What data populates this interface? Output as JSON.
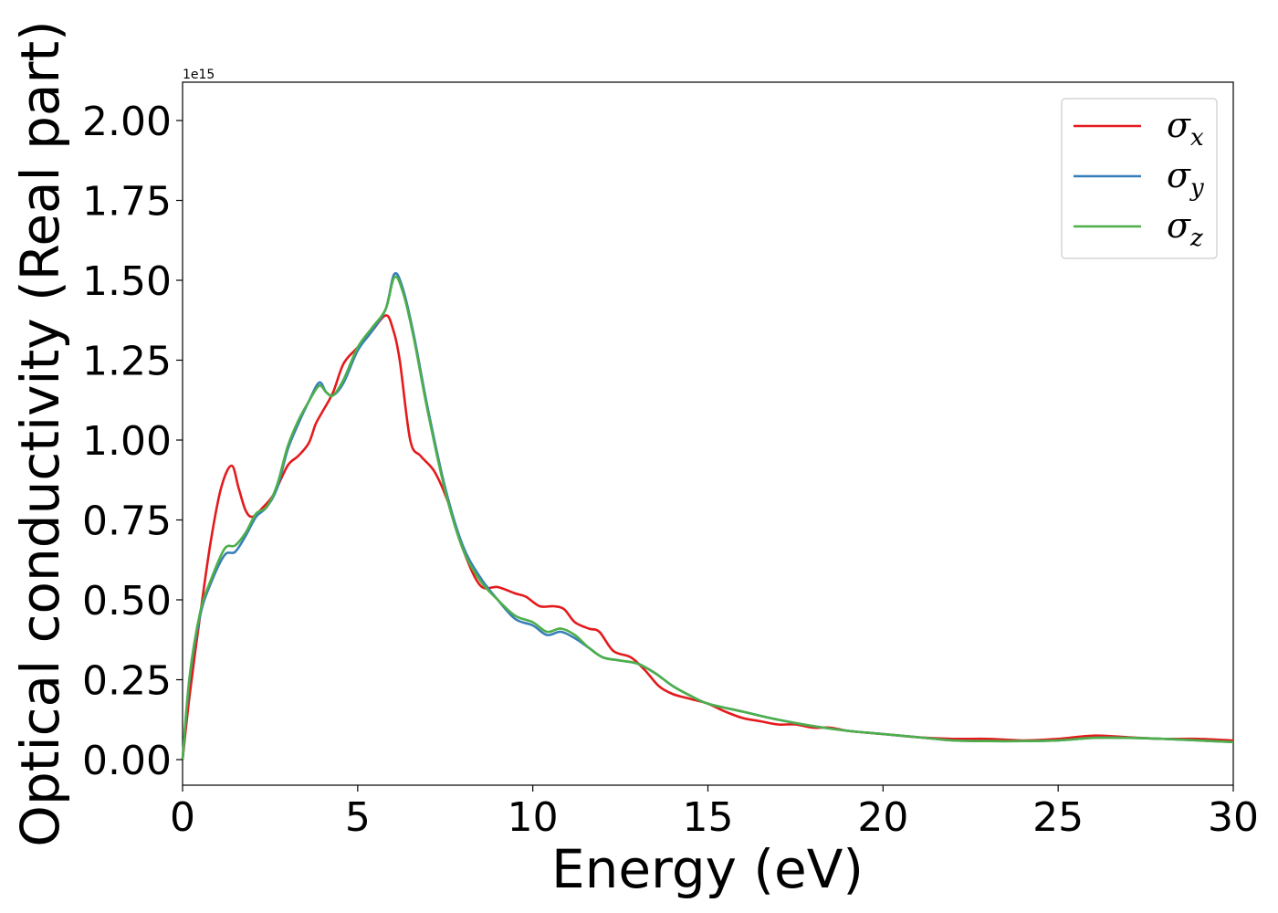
{
  "chart_data": {
    "type": "line",
    "xlabel": "Energy (eV)",
    "ylabel": "Optical conductivity (Real part)",
    "y_offset_label": "1e15",
    "xlim": [
      0,
      30
    ],
    "ylim": [
      -0.08,
      2.12
    ],
    "xticks": [
      0,
      5,
      10,
      15,
      20,
      25,
      30
    ],
    "xtick_labels": [
      "0",
      "5",
      "10",
      "15",
      "20",
      "25",
      "30"
    ],
    "yticks": [
      0.0,
      0.25,
      0.5,
      0.75,
      1.0,
      1.25,
      1.5,
      1.75,
      2.0
    ],
    "ytick_labels": [
      "0.00",
      "0.25",
      "0.50",
      "0.75",
      "1.00",
      "1.25",
      "1.50",
      "1.75",
      "2.00"
    ],
    "grid": false,
    "legend_position": "top-right",
    "series": [
      {
        "name": "σ",
        "subscript": "x",
        "color": "#e41a1c",
        "x": [
          0,
          0.2,
          0.5,
          0.8,
          1.1,
          1.4,
          1.6,
          1.8,
          2.0,
          2.3,
          2.6,
          3.0,
          3.3,
          3.6,
          3.8,
          4.0,
          4.3,
          4.6,
          5.0,
          5.4,
          5.8,
          6.0,
          6.2,
          6.5,
          6.8,
          7.2,
          7.6,
          8.0,
          8.5,
          9.0,
          9.5,
          9.8,
          10.2,
          10.6,
          10.9,
          11.2,
          11.6,
          11.9,
          12.3,
          12.8,
          13.2,
          13.6,
          14.0,
          14.5,
          15.0,
          15.5,
          16.0,
          16.5,
          17.0,
          17.5,
          18.0,
          18.5,
          19.0,
          20.0,
          21.0,
          22.0,
          23.0,
          24.0,
          25.0,
          26.0,
          27.0,
          28.0,
          29.0,
          30.0
        ],
        "y": [
          0.0,
          0.2,
          0.45,
          0.68,
          0.85,
          0.92,
          0.85,
          0.78,
          0.76,
          0.79,
          0.83,
          0.92,
          0.95,
          0.99,
          1.05,
          1.09,
          1.15,
          1.24,
          1.29,
          1.34,
          1.39,
          1.35,
          1.25,
          1.0,
          0.95,
          0.9,
          0.8,
          0.66,
          0.545,
          0.54,
          0.52,
          0.51,
          0.48,
          0.48,
          0.47,
          0.43,
          0.41,
          0.4,
          0.34,
          0.32,
          0.28,
          0.23,
          0.205,
          0.19,
          0.175,
          0.15,
          0.13,
          0.12,
          0.11,
          0.11,
          0.1,
          0.1,
          0.09,
          0.08,
          0.07,
          0.065,
          0.065,
          0.06,
          0.065,
          0.075,
          0.07,
          0.065,
          0.065,
          0.06
        ]
      },
      {
        "name": "σ",
        "subscript": "y",
        "color": "#377eb8",
        "x": [
          0,
          0.2,
          0.5,
          0.8,
          1.2,
          1.5,
          1.8,
          2.1,
          2.4,
          2.7,
          3.0,
          3.3,
          3.6,
          3.9,
          4.1,
          4.3,
          4.6,
          5.0,
          5.4,
          5.8,
          6.05,
          6.3,
          6.6,
          7.0,
          7.5,
          8.0,
          8.5,
          9.0,
          9.5,
          10.0,
          10.4,
          10.8,
          11.2,
          11.6,
          12.0,
          12.5,
          13.0,
          13.5,
          14.0,
          14.5,
          15.0,
          16.0,
          17.0,
          18.0,
          19.0,
          20.0,
          21.0,
          22.0,
          23.0,
          24.0,
          25.0,
          26.0,
          27.0,
          28.0,
          29.0,
          30.0
        ],
        "y": [
          0.0,
          0.25,
          0.45,
          0.55,
          0.64,
          0.65,
          0.7,
          0.76,
          0.79,
          0.85,
          0.97,
          1.05,
          1.12,
          1.18,
          1.15,
          1.14,
          1.18,
          1.28,
          1.34,
          1.41,
          1.52,
          1.47,
          1.33,
          1.1,
          0.85,
          0.67,
          0.57,
          0.5,
          0.44,
          0.42,
          0.39,
          0.4,
          0.38,
          0.35,
          0.32,
          0.31,
          0.3,
          0.27,
          0.23,
          0.2,
          0.175,
          0.15,
          0.125,
          0.105,
          0.09,
          0.08,
          0.07,
          0.06,
          0.058,
          0.058,
          0.06,
          0.068,
          0.068,
          0.065,
          0.06,
          0.055
        ]
      },
      {
        "name": "σ",
        "subscript": "z",
        "color": "#4daf4a",
        "x": [
          0,
          0.2,
          0.5,
          0.8,
          1.2,
          1.5,
          1.8,
          2.1,
          2.4,
          2.7,
          3.0,
          3.3,
          3.6,
          3.9,
          4.1,
          4.3,
          4.6,
          5.0,
          5.4,
          5.8,
          6.05,
          6.3,
          6.6,
          7.0,
          7.5,
          8.0,
          8.5,
          9.0,
          9.5,
          10.0,
          10.4,
          10.8,
          11.2,
          11.6,
          12.0,
          12.5,
          13.0,
          13.5,
          14.0,
          14.5,
          15.0,
          16.0,
          17.0,
          18.0,
          19.0,
          20.0,
          21.0,
          22.0,
          23.0,
          24.0,
          25.0,
          26.0,
          27.0,
          28.0,
          29.0,
          30.0
        ],
        "y": [
          0.0,
          0.26,
          0.46,
          0.56,
          0.66,
          0.67,
          0.71,
          0.77,
          0.79,
          0.86,
          0.98,
          1.06,
          1.12,
          1.17,
          1.15,
          1.14,
          1.19,
          1.29,
          1.35,
          1.41,
          1.51,
          1.46,
          1.32,
          1.09,
          0.84,
          0.66,
          0.56,
          0.5,
          0.45,
          0.43,
          0.4,
          0.41,
          0.39,
          0.35,
          0.32,
          0.31,
          0.3,
          0.27,
          0.23,
          0.2,
          0.175,
          0.15,
          0.125,
          0.105,
          0.09,
          0.08,
          0.07,
          0.06,
          0.058,
          0.058,
          0.06,
          0.068,
          0.068,
          0.065,
          0.06,
          0.055
        ]
      }
    ]
  }
}
